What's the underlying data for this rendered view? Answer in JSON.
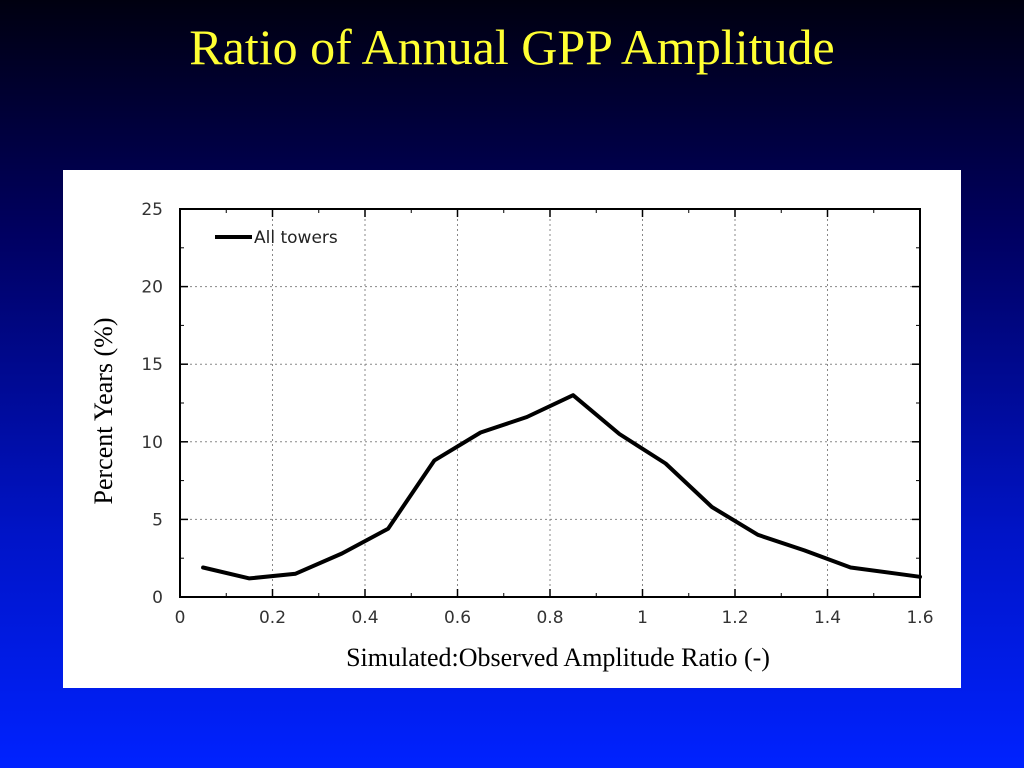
{
  "slide": {
    "title": "Ratio of Annual GPP Amplitude",
    "accent_color": "#ffff33"
  },
  "chart_data": {
    "type": "line",
    "title": "Ratio of Annual GPP Amplitude",
    "xlabel": "Simulated:Observed Amplitude Ratio (-)",
    "ylabel": "Percent Years (%)",
    "xlim": [
      0,
      1.6
    ],
    "ylim": [
      0,
      25
    ],
    "x_ticks": [
      0,
      0.2,
      0.4,
      0.6,
      0.8,
      1,
      1.2,
      1.4,
      1.6
    ],
    "y_ticks": [
      0,
      5,
      10,
      15,
      20,
      25
    ],
    "grid": true,
    "legend_position": "top-left",
    "series": [
      {
        "name": "All towers",
        "color": "#000000",
        "x": [
          0.05,
          0.15,
          0.25,
          0.35,
          0.45,
          0.55,
          0.65,
          0.75,
          0.85,
          0.95,
          1.05,
          1.15,
          1.25,
          1.35,
          1.45,
          1.55,
          1.6
        ],
        "y": [
          1.9,
          1.2,
          1.5,
          2.8,
          4.4,
          8.8,
          10.6,
          11.6,
          13.0,
          10.5,
          8.6,
          5.8,
          4.0,
          3.0,
          1.9,
          1.5,
          1.3
        ]
      }
    ]
  }
}
